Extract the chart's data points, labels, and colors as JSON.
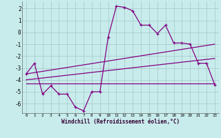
{
  "xlabel": "Windchill (Refroidissement éolien,°C)",
  "background_color": "#c8ecec",
  "grid_color": "#aacccc",
  "line_color": "#800080",
  "xlim": [
    -0.5,
    23.5
  ],
  "ylim": [
    -6.8,
    2.6
  ],
  "yticks": [
    -6,
    -5,
    -4,
    -3,
    -2,
    -1,
    0,
    1,
    2
  ],
  "xticks": [
    0,
    1,
    2,
    3,
    4,
    5,
    6,
    7,
    8,
    9,
    10,
    11,
    12,
    13,
    14,
    15,
    16,
    17,
    18,
    19,
    20,
    21,
    22,
    23
  ],
  "hours": [
    0,
    1,
    2,
    3,
    4,
    5,
    6,
    7,
    8,
    9,
    10,
    11,
    12,
    13,
    14,
    15,
    16,
    17,
    18,
    19,
    20,
    21,
    22,
    23
  ],
  "windchill": [
    -3.5,
    -2.6,
    -5.2,
    -4.5,
    -5.2,
    -5.2,
    -6.3,
    -6.6,
    -5.0,
    -5.0,
    -0.4,
    2.2,
    2.1,
    1.8,
    0.6,
    0.6,
    -0.1,
    0.6,
    -0.9,
    -0.9,
    -1.0,
    -2.6,
    -2.6,
    -4.4
  ],
  "line1_x": [
    0,
    23
  ],
  "line1_y": [
    -4.3,
    -4.3
  ],
  "line2_x": [
    0,
    23
  ],
  "line2_y": [
    -3.5,
    -1.0
  ],
  "line3_x": [
    0,
    23
  ],
  "line3_y": [
    -4.0,
    -2.2
  ]
}
